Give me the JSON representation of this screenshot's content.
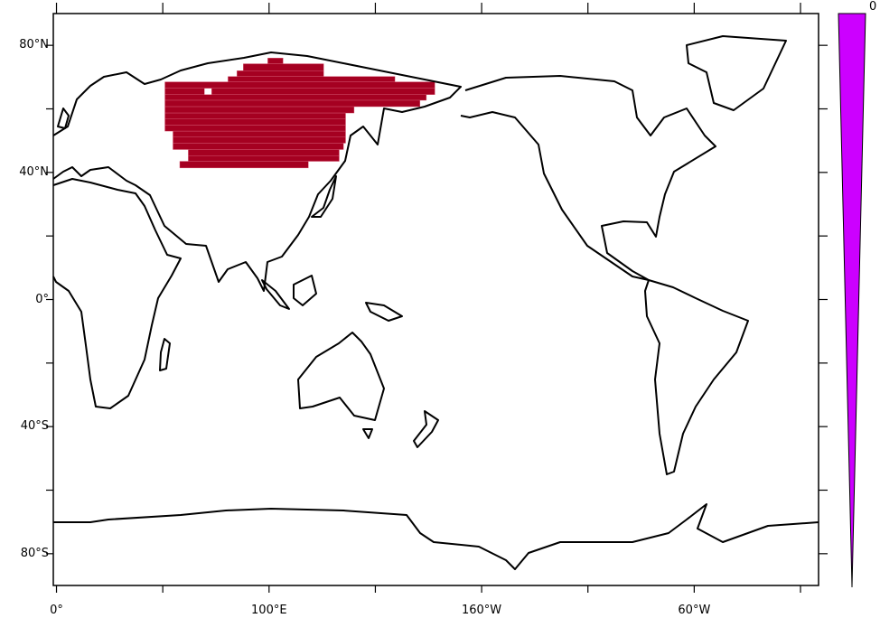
{
  "colors": {
    "mask_fill": "#a50021",
    "colorbar_fill": "#cc00ff",
    "coastline": "#000000"
  },
  "colorbar": {
    "label": "0"
  },
  "chart_data": {
    "type": "map",
    "projection": "cylindrical-equidistant",
    "lon_range": [
      -1.5,
      358.5
    ],
    "lat_range": [
      -90,
      90
    ],
    "x_ticks": [
      {
        "lon": 0,
        "label": "0°"
      },
      {
        "lon": 50,
        "label": ""
      },
      {
        "lon": 100,
        "label": "100°E"
      },
      {
        "lon": 150,
        "label": ""
      },
      {
        "lon": 200,
        "label": "160°W"
      },
      {
        "lon": 250,
        "label": ""
      },
      {
        "lon": 300,
        "label": "60°W"
      },
      {
        "lon": 350,
        "label": ""
      }
    ],
    "y_ticks": [
      {
        "lat": 80,
        "label": "80°N"
      },
      {
        "lat": 60,
        "label": ""
      },
      {
        "lat": 40,
        "label": "40°N"
      },
      {
        "lat": 20,
        "label": ""
      },
      {
        "lat": 0,
        "label": "0°"
      },
      {
        "lat": -20,
        "label": ""
      },
      {
        "lat": -40,
        "label": "40°S"
      },
      {
        "lat": -60,
        "label": ""
      },
      {
        "lat": -80,
        "label": "80°S"
      }
    ],
    "mask_region_cells": [
      {
        "lat": [
          74.2,
          76.0
        ],
        "lon": [
          99.4,
          106.6
        ]
      },
      {
        "lat": [
          72.0,
          74.2
        ],
        "lon": [
          87.9,
          125.7
        ]
      },
      {
        "lat": [
          70.2,
          72.0
        ],
        "lon": [
          84.9,
          125.7
        ]
      },
      {
        "lat": [
          68.5,
          70.2
        ],
        "lon": [
          80.7,
          159.2
        ]
      },
      {
        "lat": [
          66.5,
          68.5
        ],
        "lon": [
          51.0,
          178.0
        ]
      },
      {
        "lat": [
          64.5,
          66.5
        ],
        "lon": [
          51.0,
          69.6
        ]
      },
      {
        "lat": [
          64.5,
          66.5
        ],
        "lon": [
          73.0,
          178.0
        ]
      },
      {
        "lat": [
          62.7,
          64.5
        ],
        "lon": [
          51.0,
          174.0
        ]
      },
      {
        "lat": [
          60.7,
          62.7
        ],
        "lon": [
          51.0,
          171.0
        ]
      },
      {
        "lat": [
          58.7,
          60.7
        ],
        "lon": [
          51.0,
          140.0
        ]
      },
      {
        "lat": [
          56.8,
          58.7
        ],
        "lon": [
          51.0,
          136.0
        ]
      },
      {
        "lat": [
          54.9,
          56.8
        ],
        "lon": [
          51.0,
          136.0
        ]
      },
      {
        "lat": [
          53.0,
          54.9
        ],
        "lon": [
          51.0,
          136.0
        ]
      },
      {
        "lat": [
          51.1,
          53.0
        ],
        "lon": [
          54.8,
          136.0
        ]
      },
      {
        "lat": [
          49.2,
          51.1
        ],
        "lon": [
          54.8,
          136.0
        ]
      },
      {
        "lat": [
          47.2,
          49.2
        ],
        "lon": [
          54.8,
          135.0
        ]
      },
      {
        "lat": [
          45.3,
          47.2
        ],
        "lon": [
          62.0,
          133.0
        ]
      },
      {
        "lat": [
          43.5,
          45.3
        ],
        "lon": [
          62.0,
          133.0
        ]
      },
      {
        "lat": [
          41.4,
          43.5
        ],
        "lon": [
          58.0,
          118.5
        ]
      }
    ],
    "colorbar_levels": [
      "0"
    ]
  }
}
